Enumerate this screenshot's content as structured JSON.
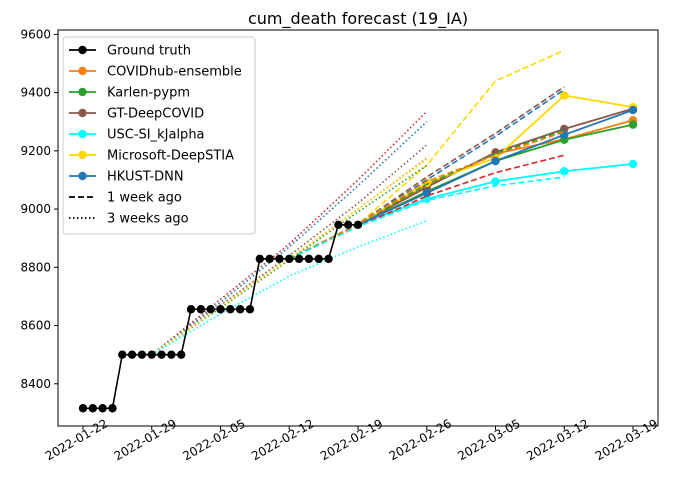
{
  "chart_data": {
    "type": "line",
    "title": "cum_death forecast (19_IA)",
    "xlabel": "",
    "ylabel": "",
    "x_ticks": [
      "2022-01-22",
      "2022-01-29",
      "2022-02-05",
      "2022-02-12",
      "2022-02-19",
      "2022-02-26",
      "2022-03-05",
      "2022-03-12",
      "2022-03-19"
    ],
    "y_ticks": [
      8400,
      8600,
      8800,
      9000,
      9200,
      9400,
      9600
    ],
    "xlim": [
      "2022-01-22",
      "2022-03-19"
    ],
    "ylim": [
      8255,
      9615
    ],
    "grid": false,
    "legend_position": "top-left",
    "legend": [
      {
        "label": "Ground truth",
        "color": "#000000",
        "marker": true,
        "style": "solid"
      },
      {
        "label": "COVIDhub-ensemble",
        "color": "#ff7f0e",
        "marker": true,
        "style": "solid"
      },
      {
        "label": "Karlen-pypm",
        "color": "#2ca02c",
        "marker": true,
        "style": "solid"
      },
      {
        "label": "GT-DeepCOVID",
        "color": "#8c564b",
        "marker": true,
        "style": "solid"
      },
      {
        "label": "USC-SI_kJalpha",
        "color": "#00ffff",
        "marker": true,
        "style": "solid"
      },
      {
        "label": "Microsoft-DeepSTIA",
        "color": "#ffd700",
        "marker": true,
        "style": "solid"
      },
      {
        "label": "HKUST-DNN",
        "color": "#1f77b4",
        "marker": true,
        "style": "solid"
      },
      {
        "label": "1 week ago",
        "color": "#000000",
        "marker": false,
        "style": "dashed"
      },
      {
        "label": "3 weeks ago",
        "color": "#000000",
        "marker": false,
        "style": "dotted"
      }
    ],
    "ground_truth": {
      "name": "Ground truth",
      "color": "#000000",
      "x": [
        "2022-01-22",
        "2022-01-23",
        "2022-01-24",
        "2022-01-25",
        "2022-01-26",
        "2022-01-27",
        "2022-01-28",
        "2022-01-29",
        "2022-01-30",
        "2022-01-31",
        "2022-02-01",
        "2022-02-02",
        "2022-02-03",
        "2022-02-04",
        "2022-02-05",
        "2022-02-06",
        "2022-02-07",
        "2022-02-08",
        "2022-02-09",
        "2022-02-10",
        "2022-02-11",
        "2022-02-12",
        "2022-02-13",
        "2022-02-14",
        "2022-02-15",
        "2022-02-16",
        "2022-02-17",
        "2022-02-18",
        "2022-02-19"
      ],
      "y": [
        8316,
        8316,
        8316,
        8316,
        8500,
        8500,
        8500,
        8500,
        8500,
        8500,
        8500,
        8656,
        8656,
        8656,
        8656,
        8656,
        8656,
        8656,
        8829,
        8829,
        8829,
        8829,
        8829,
        8829,
        8829,
        8829,
        8946,
        8946,
        8946
      ]
    },
    "series": [
      {
        "name": "COVIDhub-ensemble",
        "color": "#ff7f0e",
        "style": "solid",
        "marker": true,
        "x": [
          "2022-02-19",
          "2022-02-26",
          "2022-03-05",
          "2022-03-12",
          "2022-03-19"
        ],
        "y": [
          8946,
          9080,
          9190,
          9240,
          9305
        ]
      },
      {
        "name": "Karlen-pypm",
        "color": "#2ca02c",
        "style": "solid",
        "marker": true,
        "x": [
          "2022-02-19",
          "2022-02-26",
          "2022-03-05",
          "2022-03-12",
          "2022-03-19"
        ],
        "y": [
          8946,
          9060,
          9165,
          9238,
          9290
        ]
      },
      {
        "name": "GT-DeepCOVID",
        "color": "#8c564b",
        "style": "solid",
        "marker": true,
        "x": [
          "2022-02-19",
          "2022-02-26",
          "2022-03-05",
          "2022-03-12",
          "2022-03-19"
        ],
        "y": [
          8946,
          9075,
          9195,
          9275,
          9345
        ]
      },
      {
        "name": "USC-SI_kJalpha",
        "color": "#00ffff",
        "style": "solid",
        "marker": true,
        "x": [
          "2022-02-19",
          "2022-02-26",
          "2022-03-05",
          "2022-03-12",
          "2022-03-19"
        ],
        "y": [
          8946,
          9035,
          9095,
          9130,
          9155
        ]
      },
      {
        "name": "Microsoft-DeepSTIA",
        "color": "#ffd700",
        "style": "solid",
        "marker": true,
        "x": [
          "2022-02-19",
          "2022-02-26",
          "2022-03-05",
          "2022-03-12",
          "2022-03-19"
        ],
        "y": [
          8946,
          9090,
          9175,
          9390,
          9350
        ]
      },
      {
        "name": "HKUST-DNN",
        "color": "#1f77b4",
        "style": "solid",
        "marker": true,
        "x": [
          "2022-02-19",
          "2022-02-26",
          "2022-03-05",
          "2022-03-12",
          "2022-03-19"
        ],
        "y": [
          8946,
          9055,
          9165,
          9255,
          9340
        ]
      },
      {
        "name": "1 week ago",
        "color": "#ffd700",
        "style": "dashed",
        "marker": false,
        "x": [
          "2022-02-12",
          "2022-02-19",
          "2022-02-26",
          "2022-03-05",
          "2022-03-12"
        ],
        "y": [
          8829,
          8948,
          9150,
          9440,
          9545
        ]
      },
      {
        "name": "1 week ago",
        "color": "#8c564b",
        "style": "dashed",
        "marker": false,
        "x": [
          "2022-02-12",
          "2022-02-19",
          "2022-02-26",
          "2022-03-05",
          "2022-03-12"
        ],
        "y": [
          8829,
          8948,
          9110,
          9260,
          9420
        ]
      },
      {
        "name": "1 week ago",
        "color": "#1f77b4",
        "style": "dashed",
        "marker": false,
        "x": [
          "2022-02-12",
          "2022-02-19",
          "2022-02-26",
          "2022-03-05",
          "2022-03-12"
        ],
        "y": [
          8829,
          8948,
          9100,
          9250,
          9410
        ]
      },
      {
        "name": "1 week ago",
        "color": "#2ca02c",
        "style": "dashed",
        "marker": false,
        "x": [
          "2022-02-12",
          "2022-02-19",
          "2022-02-26",
          "2022-03-05",
          "2022-03-12"
        ],
        "y": [
          8829,
          8948,
          9085,
          9190,
          9270
        ]
      },
      {
        "name": "1 week ago",
        "color": "#ff7f0e",
        "style": "dashed",
        "marker": false,
        "x": [
          "2022-02-12",
          "2022-02-19",
          "2022-02-26",
          "2022-03-05",
          "2022-03-12"
        ],
        "y": [
          8829,
          8948,
          9095,
          9185,
          9265
        ]
      },
      {
        "name": "1 week ago",
        "color": "#d62728",
        "style": "dashed",
        "marker": false,
        "x": [
          "2022-02-12",
          "2022-02-19",
          "2022-02-26",
          "2022-03-05",
          "2022-03-12"
        ],
        "y": [
          8829,
          8940,
          9045,
          9125,
          9185
        ]
      },
      {
        "name": "1 week ago",
        "color": "#00ffff",
        "style": "dashed",
        "marker": false,
        "x": [
          "2022-02-12",
          "2022-02-19",
          "2022-02-26",
          "2022-03-05",
          "2022-03-12"
        ],
        "y": [
          8829,
          8940,
          9030,
          9080,
          9110
        ]
      },
      {
        "name": "3 weeks ago",
        "color": "#d62728",
        "style": "dotted",
        "marker": false,
        "x": [
          "2022-01-29",
          "2022-02-05",
          "2022-02-12",
          "2022-02-19",
          "2022-02-26"
        ],
        "y": [
          8500,
          8690,
          8880,
          9100,
          9335
        ]
      },
      {
        "name": "3 weeks ago",
        "color": "#1f77b4",
        "style": "dotted",
        "marker": false,
        "x": [
          "2022-01-29",
          "2022-02-05",
          "2022-02-12",
          "2022-02-19",
          "2022-02-26"
        ],
        "y": [
          8500,
          8680,
          8870,
          9080,
          9300
        ]
      },
      {
        "name": "3 weeks ago",
        "color": "#8c564b",
        "style": "dotted",
        "marker": false,
        "x": [
          "2022-01-29",
          "2022-02-05",
          "2022-02-12",
          "2022-02-19",
          "2022-02-26"
        ],
        "y": [
          8500,
          8670,
          8840,
          9020,
          9220
        ]
      },
      {
        "name": "3 weeks ago",
        "color": "#ff7f0e",
        "style": "dotted",
        "marker": false,
        "x": [
          "2022-01-29",
          "2022-02-05",
          "2022-02-12",
          "2022-02-19",
          "2022-02-26"
        ],
        "y": [
          8500,
          8665,
          8830,
          9000,
          9175
        ]
      },
      {
        "name": "3 weeks ago",
        "color": "#2ca02c",
        "style": "dotted",
        "marker": false,
        "x": [
          "2022-01-29",
          "2022-02-05",
          "2022-02-12",
          "2022-02-19",
          "2022-02-26"
        ],
        "y": [
          8500,
          8660,
          8825,
          8990,
          9150
        ]
      },
      {
        "name": "3 weeks ago",
        "color": "#ffd700",
        "style": "dotted",
        "marker": false,
        "x": [
          "2022-01-29",
          "2022-02-05",
          "2022-02-12",
          "2022-02-19",
          "2022-02-26"
        ],
        "y": [
          8500,
          8665,
          8830,
          9000,
          9170
        ]
      },
      {
        "name": "3 weeks ago",
        "color": "#00ffff",
        "style": "dotted",
        "marker": false,
        "x": [
          "2022-01-29",
          "2022-02-05",
          "2022-02-12",
          "2022-02-19",
          "2022-02-26"
        ],
        "y": [
          8500,
          8640,
          8770,
          8870,
          8960
        ]
      }
    ]
  }
}
